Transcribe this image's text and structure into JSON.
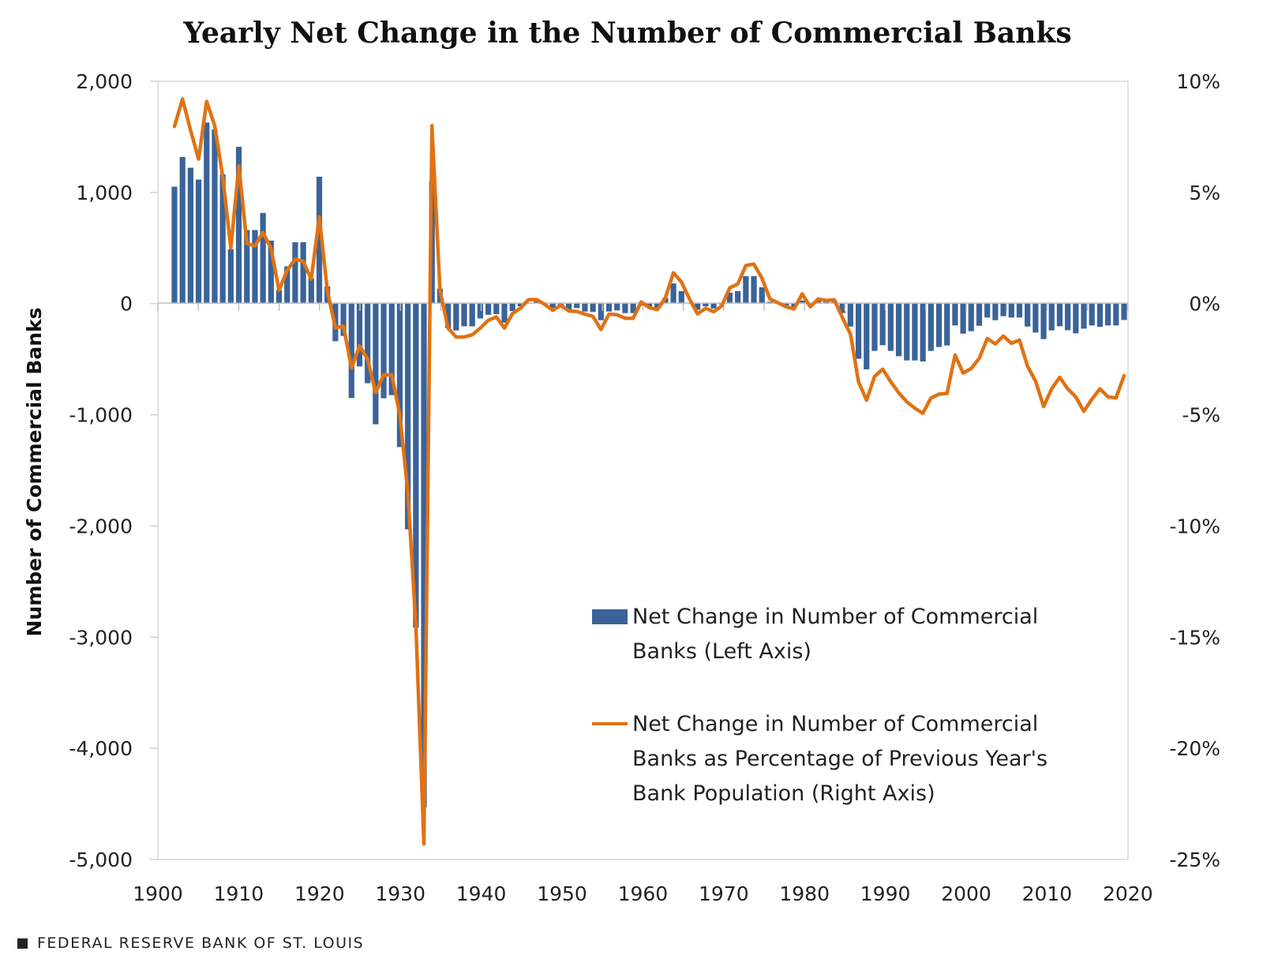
{
  "chart_data": {
    "type": "bar+line",
    "title": "Yearly Net Change in the Number of Commercial Banks",
    "xlabel": "",
    "ylabel": "Number of Commercial Banks",
    "y2label": "",
    "xlim": [
      1900,
      2020
    ],
    "ylim": [
      -5000,
      2000
    ],
    "y2lim": [
      -25,
      10
    ],
    "x_ticks": [
      "1900",
      "1910",
      "1920",
      "1930",
      "1940",
      "1950",
      "1960",
      "1970",
      "1980",
      "1990",
      "2000",
      "2010",
      "2020"
    ],
    "y_ticks": [
      "2,000",
      "1,000",
      "0",
      "-1,000",
      "-2,000",
      "-3,000",
      "-4,000",
      "-5,000"
    ],
    "y2_ticks": [
      "10%",
      "5%",
      "0%",
      "-5%",
      "-10%",
      "-15%",
      "-20%",
      "-25%"
    ],
    "grid": false,
    "legend_position": "bottom-right inside plot",
    "series": [
      {
        "name": "Net Change in Number of Commercial Banks (Left Axis)",
        "type": "bar",
        "axis": "left",
        "color": "#3a6399",
        "x": [
          1902,
          1903,
          1904,
          1905,
          1906,
          1907,
          1908,
          1909,
          1910,
          1911,
          1912,
          1913,
          1914,
          1915,
          1916,
          1917,
          1918,
          1919,
          1920,
          1921,
          1922,
          1923,
          1924,
          1925,
          1926,
          1927,
          1928,
          1929,
          1930,
          1931,
          1932,
          1933,
          1934,
          1935,
          1936,
          1937,
          1938,
          1939,
          1940,
          1941,
          1942,
          1943,
          1944,
          1945,
          1946,
          1947,
          1948,
          1949,
          1950,
          1951,
          1952,
          1953,
          1954,
          1955,
          1956,
          1957,
          1958,
          1959,
          1960,
          1961,
          1962,
          1963,
          1964,
          1965,
          1966,
          1967,
          1968,
          1969,
          1970,
          1971,
          1972,
          1973,
          1974,
          1975,
          1976,
          1977,
          1978,
          1979,
          1980,
          1981,
          1982,
          1983,
          1984,
          1985,
          1986,
          1987,
          1988,
          1989,
          1990,
          1991,
          1992,
          1993,
          1994,
          1995,
          1996,
          1997,
          1998,
          1999,
          2000,
          2001,
          2002,
          2003,
          2004,
          2005,
          2006,
          2007,
          2008,
          2009,
          2010,
          2011,
          2012,
          2013,
          2014,
          2015,
          2016,
          2017,
          2018,
          2019,
          2020
        ],
        "values": [
          1052,
          1319,
          1222,
          1116,
          1629,
          1567,
          1163,
          489,
          1411,
          662,
          662,
          816,
          567,
          123,
          335,
          553,
          553,
          229,
          1142,
          156,
          -338,
          -291,
          -849,
          -565,
          -716,
          -1085,
          -851,
          -823,
          -1290,
          -2030,
          -2915,
          -4530,
          1100,
          135,
          -220,
          -241,
          -204,
          -204,
          -133,
          -100,
          -94,
          -171,
          -66,
          -24,
          10,
          20,
          5,
          -42,
          -38,
          -52,
          -40,
          -71,
          -75,
          -149,
          -71,
          -61,
          -85,
          -85,
          -19,
          -38,
          -38,
          52,
          182,
          113,
          5,
          -54,
          -24,
          -43,
          -7,
          99,
          113,
          248,
          248,
          147,
          17,
          5,
          -19,
          -33,
          28,
          5,
          28,
          24,
          24,
          -85,
          -206,
          -496,
          -591,
          -425,
          -374,
          -425,
          -473,
          -511,
          -511,
          -520,
          -425,
          -390,
          -376,
          -196,
          -270,
          -248,
          -199,
          -125,
          -149,
          -113,
          -125,
          -125,
          -206,
          -260,
          -319,
          -241,
          -203,
          -239,
          -267,
          -225,
          -196,
          -208,
          -196,
          -196,
          -147
        ]
      },
      {
        "name": "Net Change in Number of Commercial Banks as Percentage of Previous Year's Bank Population (Right Axis)",
        "type": "line",
        "axis": "right",
        "unit": "%",
        "color": "#e07214",
        "x": [
          1902,
          1903,
          1904,
          1905,
          1906,
          1907,
          1908,
          1909,
          1910,
          1911,
          1912,
          1913,
          1914,
          1915,
          1916,
          1917,
          1918,
          1919,
          1920,
          1921,
          1922,
          1923,
          1924,
          1925,
          1926,
          1927,
          1928,
          1929,
          1930,
          1931,
          1932,
          1933,
          1934,
          1935,
          1936,
          1937,
          1938,
          1939,
          1940,
          1941,
          1942,
          1943,
          1944,
          1945,
          1946,
          1947,
          1948,
          1949,
          1950,
          1951,
          1952,
          1953,
          1954,
          1955,
          1956,
          1957,
          1958,
          1959,
          1960,
          1961,
          1962,
          1963,
          1964,
          1965,
          1966,
          1967,
          1968,
          1969,
          1970,
          1971,
          1972,
          1973,
          1974,
          1975,
          1976,
          1977,
          1978,
          1979,
          1980,
          1981,
          1982,
          1983,
          1984,
          1985,
          1986,
          1987,
          1988,
          1989,
          1990,
          1991,
          1992,
          1993,
          1994,
          1995,
          1996,
          1997,
          1998,
          1999,
          2000,
          2001,
          2002,
          2003,
          2004,
          2005,
          2006,
          2007,
          2008,
          2009,
          2010,
          2011,
          2012,
          2013,
          2014,
          2015,
          2016,
          2017,
          2018,
          2019,
          2020
        ],
        "values": [
          7.97,
          9.2,
          7.8,
          6.5,
          9.1,
          8.0,
          5.7,
          2.5,
          6.2,
          2.7,
          2.6,
          3.2,
          2.5,
          0.6,
          1.5,
          2.0,
          1.9,
          1.1,
          3.9,
          0.6,
          -1.1,
          -1.0,
          -2.9,
          -1.9,
          -2.5,
          -4.0,
          -3.2,
          -3.2,
          -5.0,
          -8.5,
          -14.5,
          -24.3,
          8.0,
          0.6,
          -1.1,
          -1.5,
          -1.5,
          -1.4,
          -1.1,
          -0.75,
          -0.6,
          -1.1,
          -0.45,
          -0.2,
          0.18,
          0.18,
          -0.03,
          -0.3,
          -0.07,
          -0.33,
          -0.35,
          -0.47,
          -0.57,
          -1.16,
          -0.47,
          -0.5,
          -0.66,
          -0.66,
          0.08,
          -0.18,
          -0.27,
          0.26,
          1.39,
          0.97,
          0.21,
          -0.46,
          -0.21,
          -0.36,
          -0.11,
          0.71,
          0.88,
          1.71,
          1.78,
          1.15,
          0.21,
          0.04,
          -0.14,
          -0.24,
          0.44,
          -0.14,
          0.21,
          0.14,
          0.17,
          -0.63,
          -1.37,
          -3.52,
          -4.34,
          -3.27,
          -2.95,
          -3.51,
          -4.01,
          -4.41,
          -4.7,
          -4.93,
          -4.25,
          -4.07,
          -4.04,
          -2.31,
          -3.12,
          -2.92,
          -2.46,
          -1.57,
          -1.81,
          -1.46,
          -1.78,
          -1.64,
          -2.81,
          -3.48,
          -4.63,
          -3.83,
          -3.31,
          -3.83,
          -4.19,
          -4.84,
          -4.3,
          -3.83,
          -4.19,
          -4.24,
          -3.24
        ]
      }
    ],
    "legend": [
      {
        "lines": [
          "Net Change in Number of Commercial",
          "Banks (Left Axis)"
        ],
        "swatch": "bar"
      },
      {
        "lines": [
          "Net Change in Number of Commercial",
          "Banks as Percentage of Previous Year's",
          "Bank Population (Right Axis)"
        ],
        "swatch": "line"
      }
    ]
  },
  "footer": {
    "source": "FEDERAL RESERVE BANK OF ST. LOUIS"
  }
}
